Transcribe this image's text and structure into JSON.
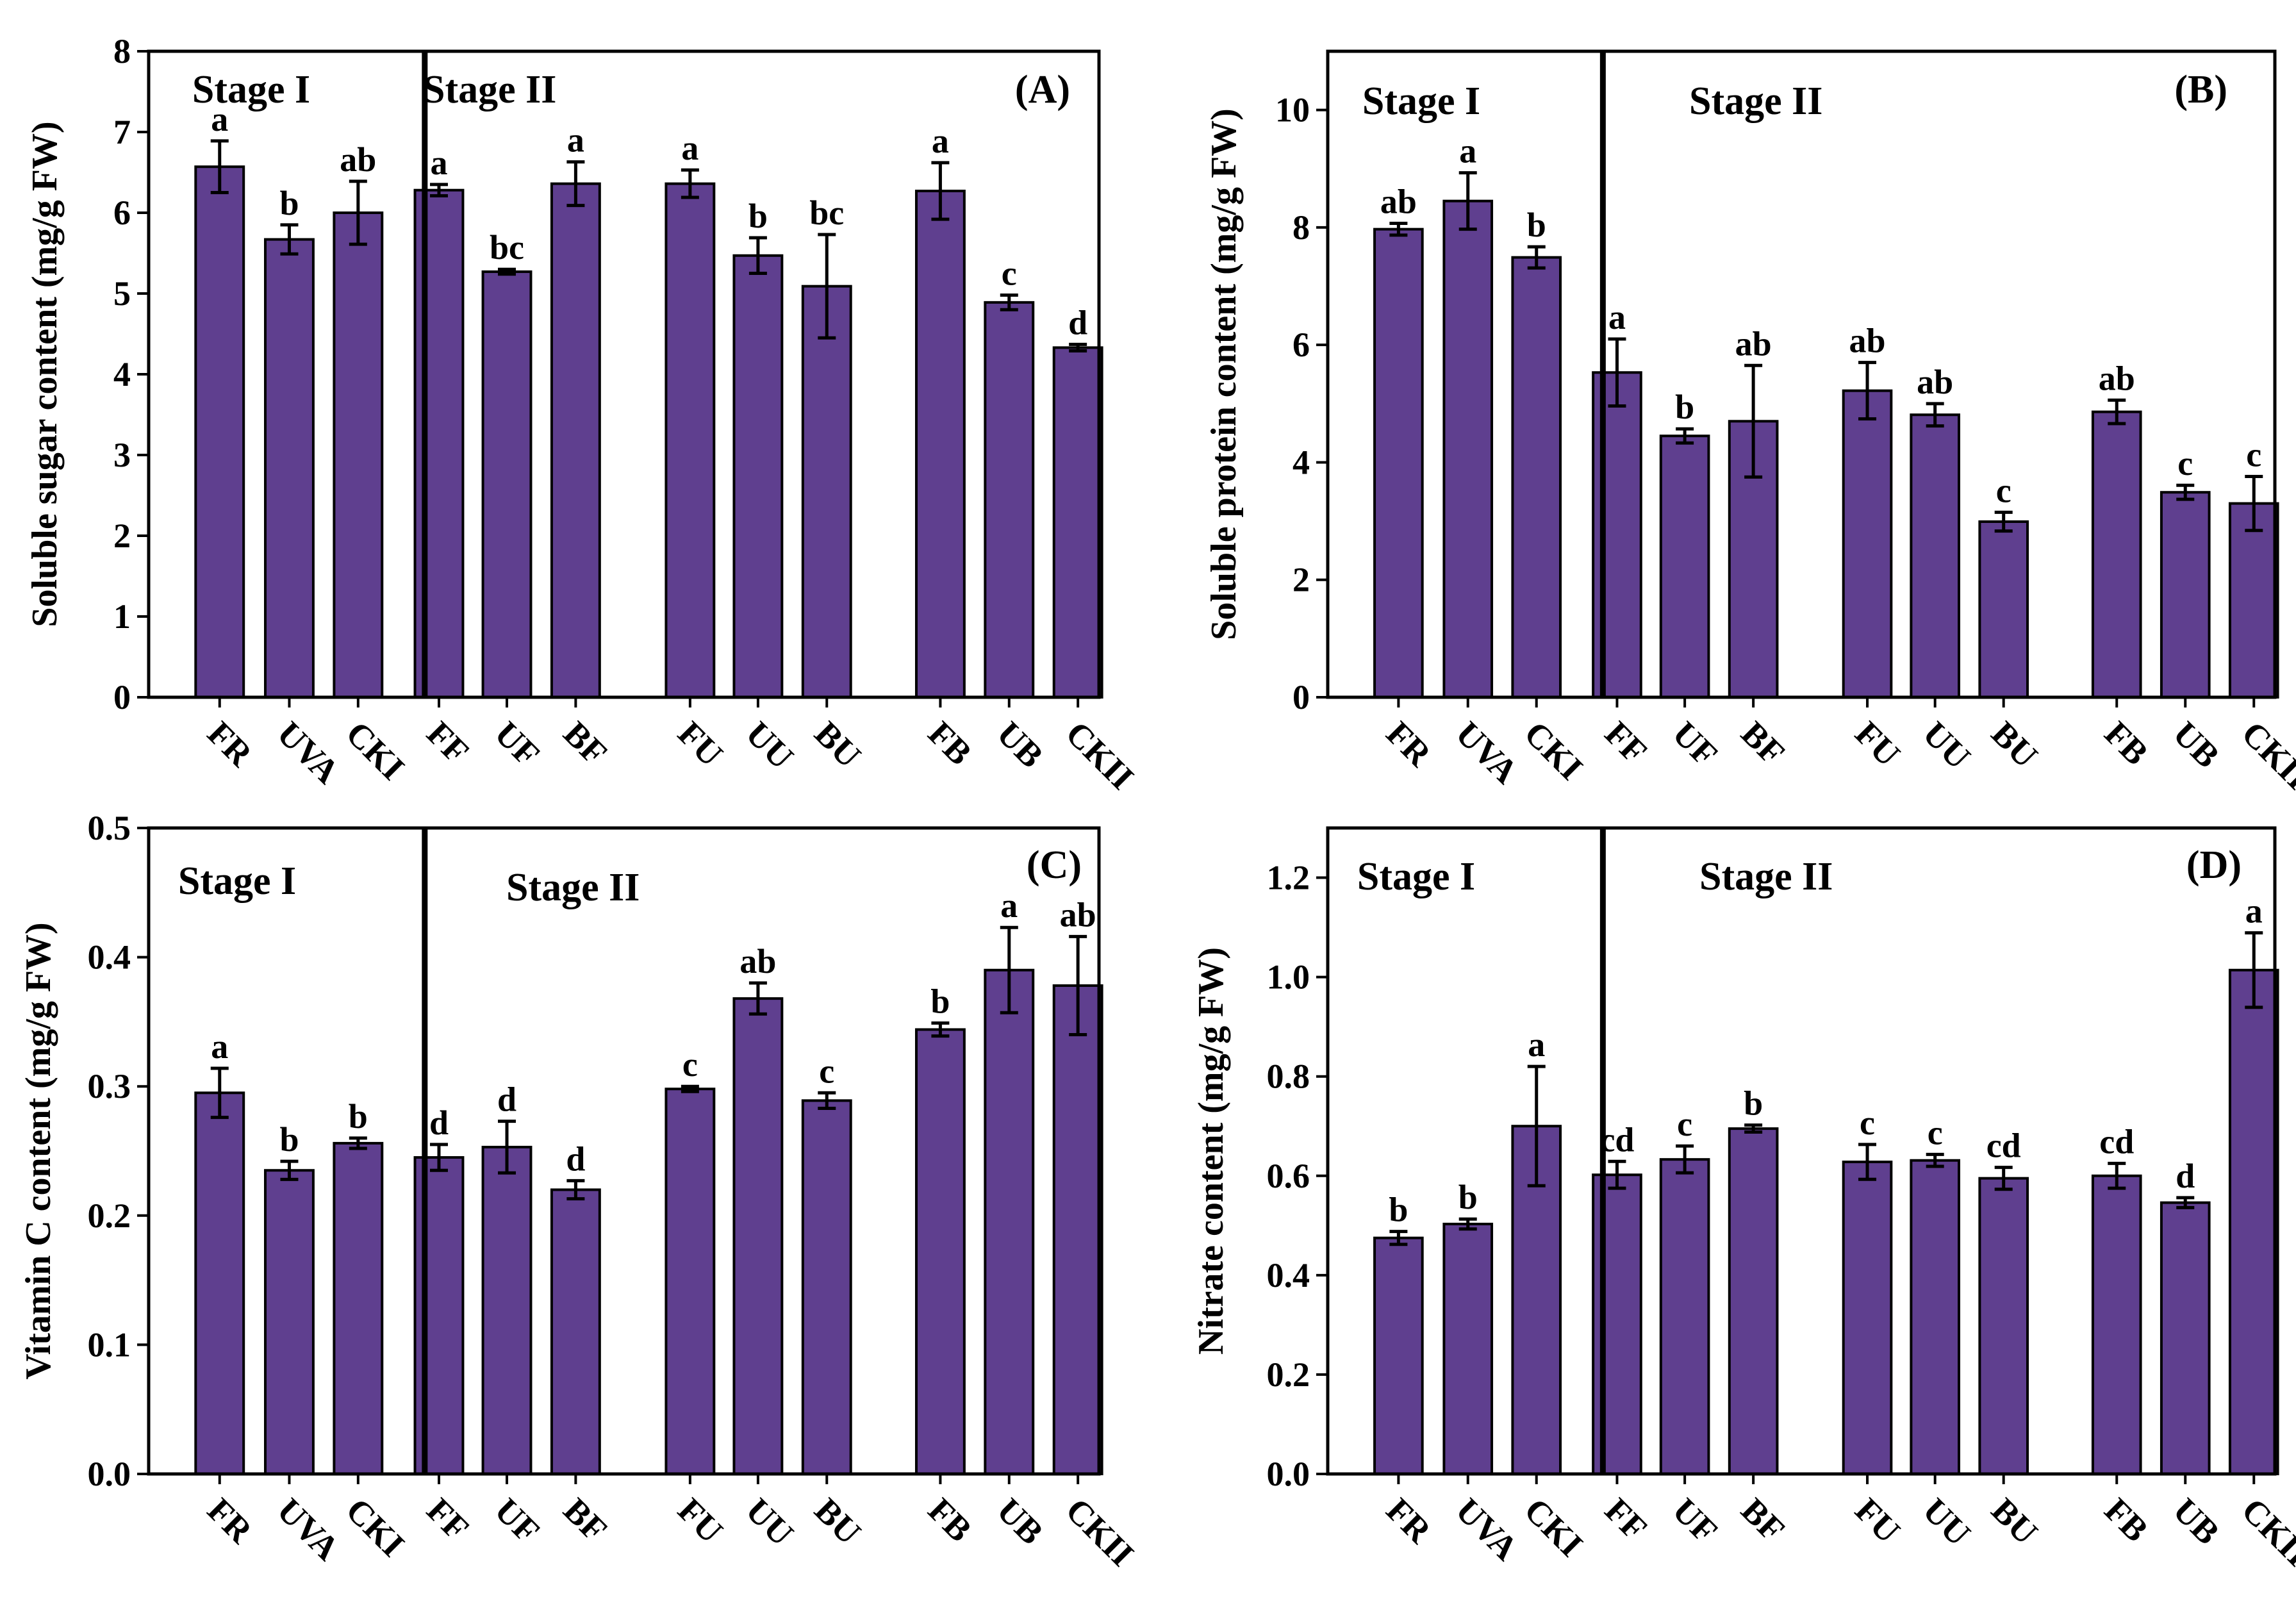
{
  "chart_data": [
    {
      "type": "bar",
      "panel": "(A)",
      "ylabel": "Soluble sugar content (mg/g FW)",
      "ylim": [
        0,
        8
      ],
      "yticks": [
        0,
        1,
        2,
        3,
        4,
        5,
        6,
        7,
        8
      ],
      "stages": [
        "Stage I",
        "Stage II"
      ],
      "bar_color": "#5f3f8f",
      "categories": [
        "FR",
        "UVA",
        "CKI",
        "FF",
        "UF",
        "BF",
        "FU",
        "UU",
        "BU",
        "FB",
        "UB",
        "CKII"
      ],
      "values": [
        6.57,
        5.67,
        6.0,
        6.28,
        5.27,
        6.36,
        6.36,
        5.47,
        5.09,
        6.27,
        4.89,
        4.33
      ],
      "errors": [
        0.32,
        0.18,
        0.39,
        0.07,
        0.03,
        0.27,
        0.17,
        0.22,
        0.64,
        0.35,
        0.09,
        0.04
      ],
      "letters": [
        "a",
        "b",
        "ab",
        "a",
        "bc",
        "a",
        "a",
        "b",
        "bc",
        "a",
        "c",
        "d"
      ]
    },
    {
      "type": "bar",
      "panel": "(B)",
      "ylabel": "Soluble protein content (mg/g FW)",
      "ylim": [
        0,
        11
      ],
      "yticks": [
        0,
        2,
        4,
        6,
        8,
        10
      ],
      "stages": [
        "Stage I",
        "Stage II"
      ],
      "bar_color": "#5f3f8f",
      "categories": [
        "FR",
        "UVA",
        "CKI",
        "FF",
        "UF",
        "BF",
        "FU",
        "UU",
        "BU",
        "FB",
        "UB",
        "CKII"
      ],
      "values": [
        7.97,
        8.45,
        7.49,
        5.53,
        4.45,
        4.7,
        5.22,
        4.81,
        2.99,
        4.86,
        3.49,
        3.3
      ],
      "errors": [
        0.1,
        0.48,
        0.18,
        0.57,
        0.12,
        0.95,
        0.48,
        0.19,
        0.16,
        0.2,
        0.12,
        0.46
      ],
      "letters": [
        "ab",
        "a",
        "b",
        "a",
        "b",
        "ab",
        "ab",
        "ab",
        "c",
        "ab",
        "c",
        "c"
      ]
    },
    {
      "type": "bar",
      "panel": "(C)",
      "ylabel": "Vitamin C content (mg/g FW)",
      "ylim": [
        0,
        0.5
      ],
      "yticks": [
        "0.0",
        "0.1",
        "0.2",
        "0.3",
        "0.4",
        "0.5"
      ],
      "stages": [
        "Stage I",
        "Stage II"
      ],
      "bar_color": "#5f3f8f",
      "categories": [
        "FR",
        "UVA",
        "CKI",
        "FF",
        "UF",
        "BF",
        "FU",
        "UU",
        "BU",
        "FB",
        "UB",
        "CKII"
      ],
      "values": [
        0.295,
        0.235,
        0.256,
        0.245,
        0.253,
        0.22,
        0.298,
        0.368,
        0.289,
        0.344,
        0.39,
        0.378
      ],
      "errors": [
        0.019,
        0.007,
        0.004,
        0.01,
        0.02,
        0.007,
        0.002,
        0.012,
        0.006,
        0.005,
        0.033,
        0.038
      ],
      "letters": [
        "a",
        "b",
        "b",
        "d",
        "d",
        "d",
        "c",
        "ab",
        "c",
        "b",
        "a",
        "ab"
      ]
    },
    {
      "type": "bar",
      "panel": "(D)",
      "ylabel": "Nitrate content (mg/g FW)",
      "ylim": [
        0,
        1.3
      ],
      "yticks": [
        "0.0",
        "0.2",
        "0.4",
        "0.6",
        "0.8",
        "1.0",
        "1.2"
      ],
      "stages": [
        "Stage I",
        "Stage II"
      ],
      "bar_color": "#5f3f8f",
      "categories": [
        "FR",
        "UVA",
        "CKI",
        "FF",
        "UF",
        "BF",
        "FU",
        "UU",
        "BU",
        "FB",
        "UB",
        "CKII"
      ],
      "values": [
        0.475,
        0.503,
        0.7,
        0.602,
        0.633,
        0.695,
        0.628,
        0.631,
        0.595,
        0.6,
        0.546,
        1.014
      ],
      "errors": [
        0.013,
        0.01,
        0.12,
        0.027,
        0.027,
        0.007,
        0.035,
        0.012,
        0.022,
        0.025,
        0.01,
        0.075
      ],
      "letters": [
        "b",
        "b",
        "a",
        "cd",
        "c",
        "b",
        "c",
        "c",
        "cd",
        "cd",
        "d",
        "a"
      ]
    }
  ]
}
